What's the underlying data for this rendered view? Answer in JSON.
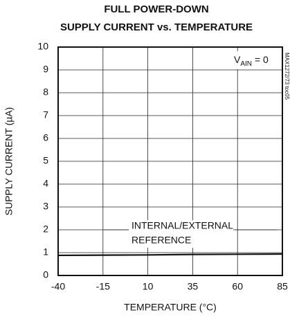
{
  "chart_data": {
    "type": "line",
    "title_lines": [
      "FULL POWER-DOWN",
      "SUPPLY CURRENT vs. TEMPERATURE"
    ],
    "x_label": "TEMPERATURE (°C)",
    "y_label": "SUPPLY CURRENT (µA)",
    "side_note": "MAX1272/73 toc05",
    "condition": {
      "main": "V",
      "sub": "AIN",
      "rest": " = 0"
    },
    "series_label_lines": [
      "INTERNAL/EXTERNAL",
      "REFERENCE"
    ],
    "x": [
      -40,
      -15,
      10,
      35,
      60,
      85
    ],
    "series": [
      {
        "name": "INTERNAL/EXTERNAL REFERENCE",
        "color": "#111111",
        "values": [
          0.88,
          0.89,
          0.9,
          0.92,
          0.93,
          0.94
        ]
      }
    ],
    "xlim": [
      -40,
      85
    ],
    "xticks": [
      -40,
      -15,
      10,
      35,
      60,
      85
    ],
    "ylim": [
      0,
      10
    ],
    "yticks": [
      0,
      1,
      2,
      3,
      4,
      5,
      6,
      7,
      8,
      9,
      10
    ],
    "grid": true
  }
}
